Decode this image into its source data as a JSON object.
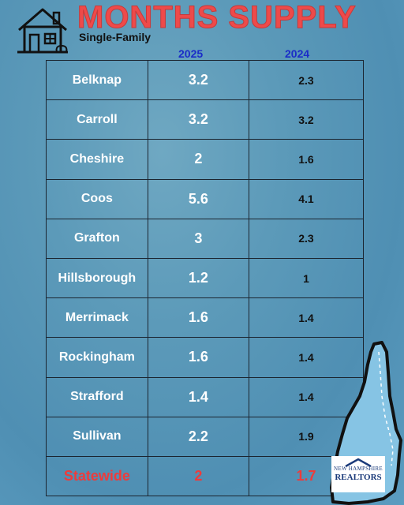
{
  "header": {
    "title": "MONTHS SUPPLY",
    "subtitle": "Single-Family",
    "icon": "house-icon"
  },
  "columns": [
    "2025",
    "2024"
  ],
  "rows": [
    {
      "county": "Belknap",
      "y2025": "3.2",
      "y2024": "2.3"
    },
    {
      "county": "Carroll",
      "y2025": "3.2",
      "y2024": "3.2"
    },
    {
      "county": "Cheshire",
      "y2025": "2",
      "y2024": "1.6"
    },
    {
      "county": "Coos",
      "y2025": "5.6",
      "y2024": "4.1"
    },
    {
      "county": "Grafton",
      "y2025": "3",
      "y2024": "2.3"
    },
    {
      "county": "Hillsborough",
      "y2025": "1.2",
      "y2024": "1"
    },
    {
      "county": "Merrimack",
      "y2025": "1.6",
      "y2024": "1.4"
    },
    {
      "county": "Rockingham",
      "y2025": "1.6",
      "y2024": "1.4"
    },
    {
      "county": "Strafford",
      "y2025": "1.4",
      "y2024": "1.4"
    },
    {
      "county": "Sullivan",
      "y2025": "2.2",
      "y2024": "1.9"
    },
    {
      "county": "Statewide",
      "y2025": "2",
      "y2024": "1.7"
    }
  ],
  "logo": {
    "line1": "NEW HAMPSHIRE",
    "line2": "REALTORS"
  },
  "colors": {
    "title": "#ee4a4a",
    "column_header": "#1a2cc8",
    "statewide": "#ee3b3b",
    "background": "#5c9ab9"
  }
}
